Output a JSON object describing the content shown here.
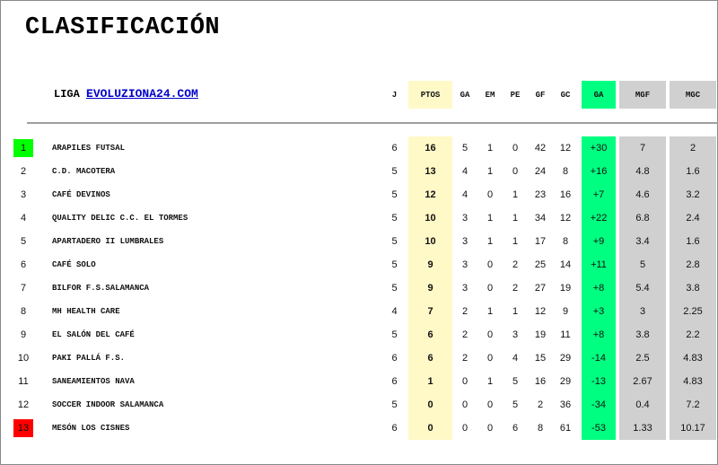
{
  "title": "CLASIFICACIÓN",
  "league": {
    "prefix": "LIGA",
    "link": "EVOLUZIONA24.COM"
  },
  "columns": [
    "J",
    "PTOS",
    "GA",
    "EM",
    "PE",
    "GF",
    "GC",
    "GA",
    "MGF",
    "MGC"
  ],
  "colors": {
    "leader": "#00ff00",
    "last": "#ff0000",
    "pts_bg": "#fff9c8",
    "ga_bg": "#00ff80",
    "mg_bg": "#d0d0d0"
  },
  "rows": [
    {
      "pos": "1",
      "team": "ARAPILES FUTSAL",
      "j": "6",
      "pts": "16",
      "ga": "5",
      "em": "1",
      "pe": "0",
      "gf": "42",
      "gc": "12",
      "dif": "+30",
      "mgf": "7",
      "mgc": "2"
    },
    {
      "pos": "2",
      "team": "C.D. MACOTERA",
      "j": "5",
      "pts": "13",
      "ga": "4",
      "em": "1",
      "pe": "0",
      "gf": "24",
      "gc": "8",
      "dif": "+16",
      "mgf": "4.8",
      "mgc": "1.6"
    },
    {
      "pos": "3",
      "team": "CAFÉ DEVINOS",
      "j": "5",
      "pts": "12",
      "ga": "4",
      "em": "0",
      "pe": "1",
      "gf": "23",
      "gc": "16",
      "dif": "+7",
      "mgf": "4.6",
      "mgc": "3.2"
    },
    {
      "pos": "4",
      "team": "QUALITY DELIC C.C. EL TORMES",
      "j": "5",
      "pts": "10",
      "ga": "3",
      "em": "1",
      "pe": "1",
      "gf": "34",
      "gc": "12",
      "dif": "+22",
      "mgf": "6.8",
      "mgc": "2.4"
    },
    {
      "pos": "5",
      "team": "APARTADERO II LUMBRALES",
      "j": "5",
      "pts": "10",
      "ga": "3",
      "em": "1",
      "pe": "1",
      "gf": "17",
      "gc": "8",
      "dif": "+9",
      "mgf": "3.4",
      "mgc": "1.6"
    },
    {
      "pos": "6",
      "team": "CAFÉ SOLO",
      "j": "5",
      "pts": "9",
      "ga": "3",
      "em": "0",
      "pe": "2",
      "gf": "25",
      "gc": "14",
      "dif": "+11",
      "mgf": "5",
      "mgc": "2.8"
    },
    {
      "pos": "7",
      "team": "BILFOR F.S.SALAMANCA",
      "j": "5",
      "pts": "9",
      "ga": "3",
      "em": "0",
      "pe": "2",
      "gf": "27",
      "gc": "19",
      "dif": "+8",
      "mgf": "5.4",
      "mgc": "3.8"
    },
    {
      "pos": "8",
      "team": "MH HEALTH CARE",
      "j": "4",
      "pts": "7",
      "ga": "2",
      "em": "1",
      "pe": "1",
      "gf": "12",
      "gc": "9",
      "dif": "+3",
      "mgf": "3",
      "mgc": "2.25"
    },
    {
      "pos": "9",
      "team": "EL SALÓN DEL CAFÉ",
      "j": "5",
      "pts": "6",
      "ga": "2",
      "em": "0",
      "pe": "3",
      "gf": "19",
      "gc": "11",
      "dif": "+8",
      "mgf": "3.8",
      "mgc": "2.2"
    },
    {
      "pos": "10",
      "team": "PAKI PALLÁ F.S.",
      "j": "6",
      "pts": "6",
      "ga": "2",
      "em": "0",
      "pe": "4",
      "gf": "15",
      "gc": "29",
      "dif": "-14",
      "mgf": "2.5",
      "mgc": "4.83"
    },
    {
      "pos": "11",
      "team": "SANEAMIENTOS NAVA",
      "j": "6",
      "pts": "1",
      "ga": "0",
      "em": "1",
      "pe": "5",
      "gf": "16",
      "gc": "29",
      "dif": "-13",
      "mgf": "2.67",
      "mgc": "4.83"
    },
    {
      "pos": "12",
      "team": "SOCCER INDOOR SALAMANCA",
      "j": "5",
      "pts": "0",
      "ga": "0",
      "em": "0",
      "pe": "5",
      "gf": "2",
      "gc": "36",
      "dif": "-34",
      "mgf": "0.4",
      "mgc": "7.2"
    },
    {
      "pos": "13",
      "team": "MESÓN LOS CISNES",
      "j": "6",
      "pts": "0",
      "ga": "0",
      "em": "0",
      "pe": "6",
      "gf": "8",
      "gc": "61",
      "dif": "-53",
      "mgf": "1.33",
      "mgc": "10.17"
    }
  ]
}
